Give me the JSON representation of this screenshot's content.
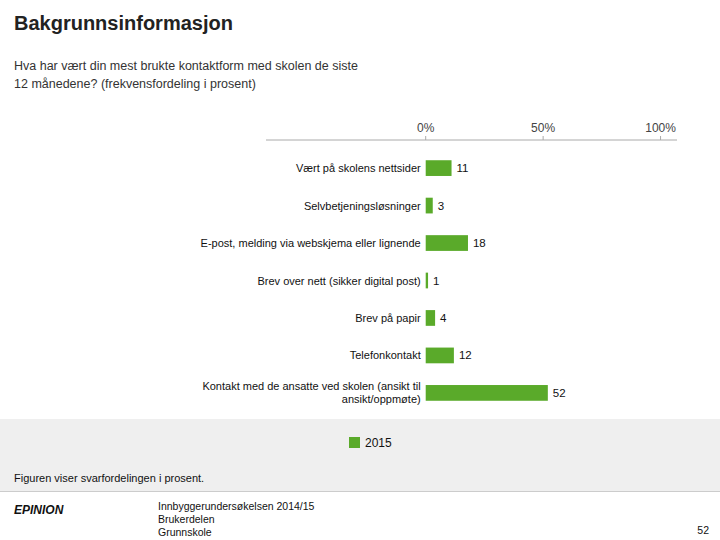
{
  "chart_data": {
    "type": "bar",
    "orientation": "horizontal",
    "title": "Bakgrunnsinformasjon",
    "subtitle": "Hva har vært din mest brukte kontaktform med skolen de siste\n12 månedene? (frekvensfordeling i prosent)",
    "categories": [
      "Kontakt med de ansatte ved skolen (ansikt til\nansikt/oppmøte)",
      "Telefonkontakt",
      "Brev på papir",
      "Brev over nett (sikker digital post)",
      "E-post, melding via webskjema eller lignende",
      "Selvbetjeningsløsninger",
      "Vært på skolens nettsider"
    ],
    "series": [
      {
        "name": "2015",
        "color": "#5aaa2a",
        "values": [
          52,
          12,
          4,
          1,
          18,
          3,
          11
        ]
      }
    ],
    "xlim": [
      -68,
      107
    ],
    "xticks": [
      {
        "value": 0,
        "label": "0%"
      },
      {
        "value": 50,
        "label": "50%"
      },
      {
        "value": 100,
        "label": "100%"
      }
    ],
    "data_labels": true,
    "legend": "bottom",
    "annotations": [
      "Figuren viser svarfordelingen i prosent.",
      "EPINION",
      "Innbyggerundersøkelsen 2014/15",
      "Brukerdelen",
      "Grunnskole",
      "52"
    ]
  }
}
